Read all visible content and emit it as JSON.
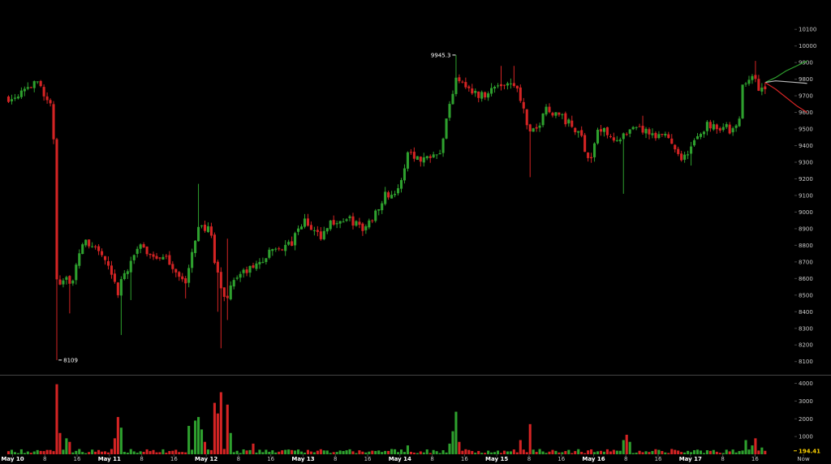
{
  "chart_data": {
    "type": "candlestick",
    "colors": {
      "up": "#2ea02e",
      "down": "#d42424",
      "background": "#000000",
      "axis_text": "#c8c8c8",
      "separator": "#444444",
      "last_volume": "#ffd400"
    },
    "price_axis": {
      "ylim": [
        8040,
        10140
      ],
      "ticks": [
        "8100",
        "8200",
        "8300",
        "8400",
        "8500",
        "8600",
        "8700",
        "8800",
        "8900",
        "9000",
        "9100",
        "9200",
        "9300",
        "9400",
        "9500",
        "9600",
        "9700",
        "9800",
        "9900",
        "10000",
        "10100"
      ]
    },
    "volume_axis": {
      "ylim": [
        0,
        4300
      ],
      "ticks": [
        "1000",
        "2000",
        "3000",
        "4000"
      ]
    },
    "x_axis": {
      "labels": [
        {
          "text": "May 10",
          "t": 0,
          "strong": true
        },
        {
          "text": "8",
          "t": 8,
          "strong": false
        },
        {
          "text": "16",
          "t": 16,
          "strong": false
        },
        {
          "text": "May 11",
          "t": 24,
          "strong": true
        },
        {
          "text": "8",
          "t": 32,
          "strong": false
        },
        {
          "text": "16",
          "t": 40,
          "strong": false
        },
        {
          "text": "May 12",
          "t": 48,
          "strong": true
        },
        {
          "text": "8",
          "t": 56,
          "strong": false
        },
        {
          "text": "16",
          "t": 64,
          "strong": false
        },
        {
          "text": "May 13",
          "t": 72,
          "strong": true
        },
        {
          "text": "8",
          "t": 80,
          "strong": false
        },
        {
          "text": "16",
          "t": 88,
          "strong": false
        },
        {
          "text": "May 14",
          "t": 96,
          "strong": true
        },
        {
          "text": "8",
          "t": 104,
          "strong": false
        },
        {
          "text": "16",
          "t": 112,
          "strong": false
        },
        {
          "text": "May 15",
          "t": 120,
          "strong": true
        },
        {
          "text": "8",
          "t": 128,
          "strong": false
        },
        {
          "text": "16",
          "t": 136,
          "strong": false
        },
        {
          "text": "May 16",
          "t": 144,
          "strong": true
        },
        {
          "text": "8",
          "t": 152,
          "strong": false
        },
        {
          "text": "16",
          "t": 160,
          "strong": false
        },
        {
          "text": "May 17",
          "t": 168,
          "strong": true
        },
        {
          "text": "8",
          "t": 176,
          "strong": false
        },
        {
          "text": "16",
          "t": 184,
          "strong": false
        },
        {
          "text": "Now",
          "t": 196,
          "strong": false
        }
      ],
      "t_range": [
        -1.5,
        198
      ]
    },
    "annotations": {
      "high": {
        "text": "9945.3",
        "t": 110,
        "value": 9945.3
      },
      "low": {
        "text": "8109",
        "t": 11,
        "value": 8109
      },
      "last_volume": {
        "text": "194.41",
        "value": 194.41
      }
    },
    "forecast": {
      "start": {
        "t": 186.5,
        "value": 9780
      },
      "up": [
        9810,
        9850,
        9880,
        9910
      ],
      "mid": [
        9790,
        9785,
        9780,
        9775
      ],
      "down": [
        9740,
        9690,
        9640,
        9600
      ]
    },
    "anchors": [
      [
        0,
        9690
      ],
      [
        3,
        9760
      ],
      [
        7,
        9770
      ],
      [
        9,
        9640
      ],
      [
        10,
        9620
      ],
      [
        11,
        8560
      ],
      [
        13,
        8620
      ],
      [
        15,
        8570
      ],
      [
        17,
        8820
      ],
      [
        21,
        8780
      ],
      [
        23,
        8700
      ],
      [
        26,
        8510
      ],
      [
        28,
        8640
      ],
      [
        31,
        8790
      ],
      [
        35,
        8740
      ],
      [
        39,
        8700
      ],
      [
        43,
        8560
      ],
      [
        46,
        8930
      ],
      [
        49,
        8880
      ],
      [
        50,
        8700
      ],
      [
        52,
        8510
      ],
      [
        53,
        8480
      ],
      [
        55,
        8610
      ],
      [
        58,
        8640
      ],
      [
        61,
        8690
      ],
      [
        65,
        8780
      ],
      [
        69,
        8800
      ],
      [
        72,
        8950
      ],
      [
        76,
        8850
      ],
      [
        79,
        8940
      ],
      [
        84,
        8950
      ],
      [
        87,
        8890
      ],
      [
        89,
        8960
      ],
      [
        92,
        9100
      ],
      [
        96,
        9130
      ],
      [
        98,
        9380
      ],
      [
        101,
        9310
      ],
      [
        104,
        9360
      ],
      [
        106,
        9380
      ],
      [
        110,
        9830
      ],
      [
        114,
        9720
      ],
      [
        116,
        9700
      ],
      [
        120,
        9760
      ],
      [
        124,
        9790
      ],
      [
        126,
        9680
      ],
      [
        128,
        9460
      ],
      [
        130,
        9500
      ],
      [
        132,
        9630
      ],
      [
        136,
        9580
      ],
      [
        139,
        9500
      ],
      [
        141,
        9450
      ],
      [
        143,
        9300
      ],
      [
        145,
        9490
      ],
      [
        148,
        9480
      ],
      [
        150,
        9420
      ],
      [
        153,
        9480
      ],
      [
        156,
        9500
      ],
      [
        159,
        9440
      ],
      [
        162,
        9470
      ],
      [
        164,
        9400
      ],
      [
        166,
        9320
      ],
      [
        167,
        9340
      ],
      [
        169,
        9420
      ],
      [
        172,
        9530
      ],
      [
        174,
        9520
      ],
      [
        177,
        9510
      ],
      [
        178,
        9480
      ],
      [
        180,
        9520
      ],
      [
        181,
        9780
      ],
      [
        183,
        9830
      ],
      [
        184,
        9780
      ],
      [
        186,
        9730
      ]
    ],
    "wicks": [
      {
        "t": 11,
        "low": 8109
      },
      {
        "t": 12,
        "low": 8560
      },
      {
        "t": 14,
        "low": 8390
      },
      {
        "t": 27,
        "low": 8260
      },
      {
        "t": 29,
        "low": 8470
      },
      {
        "t": 43,
        "low": 8480
      },
      {
        "t": 46,
        "high": 9170
      },
      {
        "t": 51,
        "low": 8400
      },
      {
        "t": 52,
        "low": 8180
      },
      {
        "t": 53,
        "low": 8350
      },
      {
        "t": 53.5,
        "high": 8840
      },
      {
        "t": 110,
        "high": 9945.3
      },
      {
        "t": 124,
        "high": 9880
      },
      {
        "t": 128,
        "low": 9210
      },
      {
        "t": 151,
        "low": 9110
      },
      {
        "t": 156,
        "high": 9580
      },
      {
        "t": 168,
        "low": 9280
      },
      {
        "t": 184,
        "high": 9910
      },
      {
        "t": 181,
        "high": 9760
      },
      {
        "t": 121,
        "high": 9880
      }
    ],
    "volume_spikes": [
      {
        "t": 11,
        "v": 3950
      },
      {
        "t": 12,
        "v": 1200
      },
      {
        "t": 13,
        "v": 900
      },
      {
        "t": 14,
        "v": 700
      },
      {
        "t": 25,
        "v": 900
      },
      {
        "t": 26,
        "v": 2100
      },
      {
        "t": 27,
        "v": 1500
      },
      {
        "t": 44,
        "v": 1600
      },
      {
        "t": 45,
        "v": 1900
      },
      {
        "t": 46,
        "v": 2100
      },
      {
        "t": 47,
        "v": 1400
      },
      {
        "t": 48,
        "v": 700
      },
      {
        "t": 50,
        "v": 2900
      },
      {
        "t": 51,
        "v": 2300
      },
      {
        "t": 52,
        "v": 3500
      },
      {
        "t": 53,
        "v": 2800
      },
      {
        "t": 54,
        "v": 1200
      },
      {
        "t": 60,
        "v": 600
      },
      {
        "t": 98,
        "v": 500
      },
      {
        "t": 108,
        "v": 600
      },
      {
        "t": 109,
        "v": 1300
      },
      {
        "t": 110,
        "v": 2400
      },
      {
        "t": 111,
        "v": 700
      },
      {
        "t": 126,
        "v": 800
      },
      {
        "t": 128,
        "v": 1700
      },
      {
        "t": 151,
        "v": 800
      },
      {
        "t": 152,
        "v": 1100
      },
      {
        "t": 153,
        "v": 700
      },
      {
        "t": 182,
        "v": 800
      },
      {
        "t": 184,
        "v": 900
      },
      {
        "t": 183,
        "v": 500
      },
      {
        "t": 186,
        "v": 380
      },
      {
        "t": 187,
        "v": 194.41
      }
    ]
  }
}
